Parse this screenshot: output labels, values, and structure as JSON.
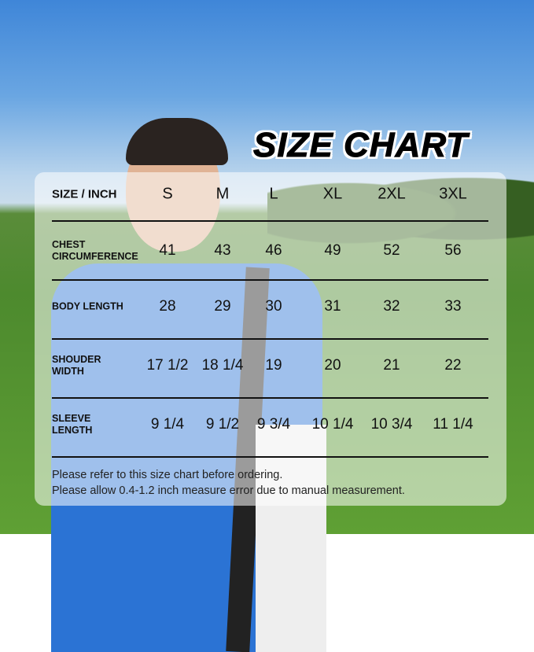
{
  "title": "SIZE CHART",
  "table": {
    "corner": "SIZE / INCH",
    "sizes": [
      "S",
      "M",
      "L",
      "XL",
      "2XL",
      "3XL"
    ],
    "rows": [
      {
        "label": "CHEST CIRCUMFERENCE",
        "label_lines": [
          "CHEST",
          "CIRCUMFERENCE"
        ],
        "values": [
          "41",
          "43",
          "46",
          "49",
          "52",
          "56"
        ]
      },
      {
        "label": "BODY LENGTH",
        "label_lines": [
          "BODY LENGTH",
          ""
        ],
        "values": [
          "28",
          "29",
          "30",
          "31",
          "32",
          "33"
        ]
      },
      {
        "label": "SHOUDER WIDTH",
        "label_lines": [
          "SHOUDER",
          "WIDTH"
        ],
        "values": [
          "17 1/2",
          "18 1/4",
          "19",
          "20",
          "21",
          "22"
        ]
      },
      {
        "label": "SLEEVE LENGTH",
        "label_lines": [
          "SLEEVE",
          "LENGTH"
        ],
        "values": [
          "9 1/4",
          "9 1/2",
          "9 3/4",
          "10 1/4",
          "10 3/4",
          "11 1/4"
        ]
      }
    ]
  },
  "notes": [
    "Please refer to this size chart before ordering.",
    "Please allow 0.4-1.2 inch measure error due to manual measurement."
  ]
}
